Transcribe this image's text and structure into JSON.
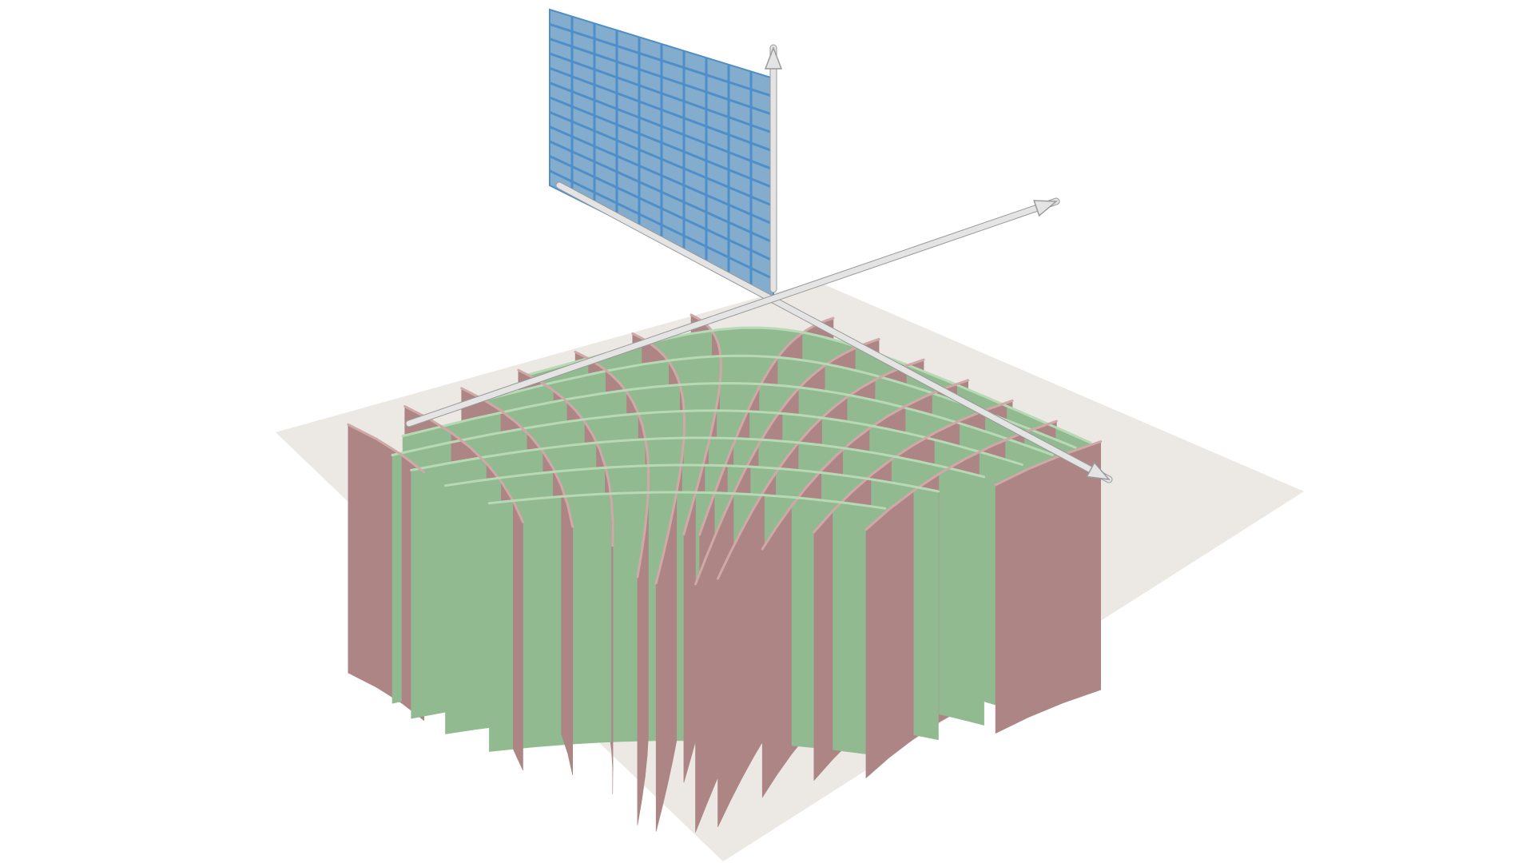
{
  "figure": {
    "wall_red": "#ad8585",
    "wall_green": "#92ba91",
    "wall_green_dark": "#5e8a60",
    "rod_red": "#d0a8a8",
    "rod_green": "#b7dab5",
    "plane_blue": "#6f9fc4",
    "plane_grid": "#4e8fc9",
    "axis_color": "#e4e4e4",
    "floor_color": "#ece8e3"
  }
}
